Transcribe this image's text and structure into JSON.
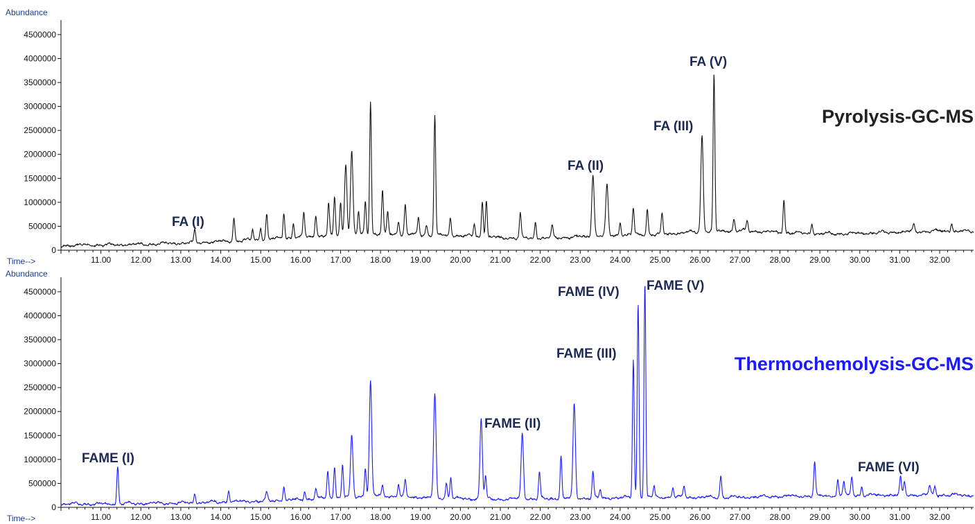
{
  "colors": {
    "pyrolysis_trace": "#111111",
    "thermo_trace": "#1a1aff",
    "thermo_title": "#1a1aff",
    "pyrolysis_title": "#222222",
    "axis_label": "#1a3d8f",
    "peak_label": "#1b2a55"
  },
  "chart_data": [
    {
      "type": "line",
      "title": "Pyrolysis-GC-MS",
      "ylabel": "Abundance",
      "xlabel": "Time-->",
      "xlim": [
        10.0,
        32.85
      ],
      "ylim": [
        0,
        4600000
      ],
      "y_ticks": [
        "0",
        "500000",
        "1000000",
        "1500000",
        "2000000",
        "2500000",
        "3000000",
        "3500000",
        "4000000",
        "4500000"
      ],
      "x_ticks": [
        "11.00",
        "12.00",
        "13.00",
        "14.00",
        "15.00",
        "16.00",
        "17.00",
        "18.00",
        "19.00",
        "20.00",
        "21.00",
        "22.00",
        "23.00",
        "24.00",
        "25.00",
        "26.00",
        "27.00",
        "28.00",
        "29.00",
        "30.00",
        "31.00",
        "32.00"
      ],
      "baseline": [
        [
          10.0,
          90000
        ],
        [
          11.0,
          100000
        ],
        [
          12.0,
          110000
        ],
        [
          13.0,
          140000
        ],
        [
          14.0,
          170000
        ],
        [
          15.0,
          210000
        ],
        [
          16.0,
          260000
        ],
        [
          17.0,
          310000
        ],
        [
          18.0,
          330000
        ],
        [
          19.0,
          310000
        ],
        [
          20.0,
          290000
        ],
        [
          21.0,
          250000
        ],
        [
          22.0,
          240000
        ],
        [
          23.0,
          270000
        ],
        [
          24.0,
          310000
        ],
        [
          25.0,
          320000
        ],
        [
          26.0,
          380000
        ],
        [
          27.0,
          400000
        ],
        [
          28.0,
          360000
        ],
        [
          29.0,
          330000
        ],
        [
          30.0,
          340000
        ],
        [
          31.0,
          370000
        ],
        [
          32.0,
          390000
        ],
        [
          32.85,
          380000
        ]
      ],
      "peaks": [
        {
          "x": 13.35,
          "y": 390000
        },
        {
          "x": 14.33,
          "y": 680000
        },
        {
          "x": 14.8,
          "y": 420000
        },
        {
          "x": 15.0,
          "y": 450000
        },
        {
          "x": 15.15,
          "y": 760000
        },
        {
          "x": 15.58,
          "y": 780000
        },
        {
          "x": 15.82,
          "y": 560000
        },
        {
          "x": 16.08,
          "y": 780000
        },
        {
          "x": 16.38,
          "y": 740000
        },
        {
          "x": 16.7,
          "y": 960000
        },
        {
          "x": 16.85,
          "y": 1100000
        },
        {
          "x": 17.0,
          "y": 1000000
        },
        {
          "x": 17.13,
          "y": 1780000
        },
        {
          "x": 17.28,
          "y": 2070000
        },
        {
          "x": 17.45,
          "y": 780000
        },
        {
          "x": 17.62,
          "y": 1020000
        },
        {
          "x": 17.75,
          "y": 3100000
        },
        {
          "x": 18.05,
          "y": 1220000
        },
        {
          "x": 18.18,
          "y": 780000
        },
        {
          "x": 18.45,
          "y": 600000
        },
        {
          "x": 18.62,
          "y": 960000
        },
        {
          "x": 18.95,
          "y": 680000
        },
        {
          "x": 19.15,
          "y": 520000
        },
        {
          "x": 19.36,
          "y": 2830000
        },
        {
          "x": 19.75,
          "y": 680000
        },
        {
          "x": 20.35,
          "y": 560000
        },
        {
          "x": 20.55,
          "y": 1020000
        },
        {
          "x": 20.65,
          "y": 1040000
        },
        {
          "x": 21.5,
          "y": 760000
        },
        {
          "x": 21.88,
          "y": 580000
        },
        {
          "x": 22.3,
          "y": 500000
        },
        {
          "x": 23.32,
          "y": 1560000
        },
        {
          "x": 23.67,
          "y": 1340000
        },
        {
          "x": 24.0,
          "y": 560000
        },
        {
          "x": 24.33,
          "y": 860000
        },
        {
          "x": 24.68,
          "y": 860000
        },
        {
          "x": 25.05,
          "y": 740000
        },
        {
          "x": 26.05,
          "y": 2380000
        },
        {
          "x": 26.35,
          "y": 3650000
        },
        {
          "x": 26.85,
          "y": 640000
        },
        {
          "x": 27.18,
          "y": 590000
        },
        {
          "x": 28.1,
          "y": 1040000
        },
        {
          "x": 28.8,
          "y": 550000
        },
        {
          "x": 31.35,
          "y": 530000
        },
        {
          "x": 32.3,
          "y": 560000
        }
      ],
      "annotations": [
        {
          "text": "FA  (I)",
          "x": 13.35,
          "y": 390000
        },
        {
          "text": "FA  (II)",
          "x": 23.32,
          "y": 1560000
        },
        {
          "text": "FA  (III)",
          "x": 26.0,
          "y": 2380000
        },
        {
          "text": "FA  (V)",
          "x": 26.35,
          "y": 3650000
        }
      ]
    },
    {
      "type": "line",
      "title": "Thermochemolysis-GC-MS",
      "ylabel": "Abundance",
      "xlabel": "Time-->",
      "xlim": [
        10.0,
        32.85
      ],
      "ylim": [
        0,
        4600000
      ],
      "y_ticks": [
        "0",
        "500000",
        "1000000",
        "1500000",
        "2000000",
        "2500000",
        "3000000",
        "3500000",
        "4000000",
        "4500000"
      ],
      "x_ticks": [
        "11.00",
        "12.00",
        "13.00",
        "14.00",
        "15.00",
        "16.00",
        "17.00",
        "18.00",
        "19.00",
        "20.00",
        "21.00",
        "22.00",
        "23.00",
        "24.00",
        "25.00",
        "26.00",
        "27.00",
        "28.00",
        "29.00",
        "30.00",
        "31.00",
        "32.00"
      ],
      "baseline": [
        [
          10.0,
          60000
        ],
        [
          11.0,
          60000
        ],
        [
          12.0,
          70000
        ],
        [
          13.0,
          80000
        ],
        [
          14.0,
          100000
        ],
        [
          15.0,
          120000
        ],
        [
          16.0,
          150000
        ],
        [
          17.0,
          200000
        ],
        [
          18.0,
          230000
        ],
        [
          19.0,
          200000
        ],
        [
          20.0,
          170000
        ],
        [
          21.0,
          160000
        ],
        [
          22.0,
          170000
        ],
        [
          23.0,
          180000
        ],
        [
          24.0,
          190000
        ],
        [
          25.0,
          200000
        ],
        [
          26.0,
          200000
        ],
        [
          27.0,
          200000
        ],
        [
          28.0,
          220000
        ],
        [
          29.0,
          230000
        ],
        [
          30.0,
          240000
        ],
        [
          31.0,
          250000
        ],
        [
          32.0,
          250000
        ],
        [
          32.85,
          240000
        ]
      ],
      "peaks": [
        {
          "x": 11.42,
          "y": 840000
        },
        {
          "x": 13.35,
          "y": 270000
        },
        {
          "x": 14.2,
          "y": 350000
        },
        {
          "x": 15.15,
          "y": 300000
        },
        {
          "x": 15.58,
          "y": 420000
        },
        {
          "x": 16.1,
          "y": 330000
        },
        {
          "x": 16.38,
          "y": 400000
        },
        {
          "x": 16.68,
          "y": 750000
        },
        {
          "x": 16.85,
          "y": 840000
        },
        {
          "x": 17.05,
          "y": 880000
        },
        {
          "x": 17.28,
          "y": 1480000
        },
        {
          "x": 17.62,
          "y": 830000
        },
        {
          "x": 17.75,
          "y": 2620000
        },
        {
          "x": 18.05,
          "y": 450000
        },
        {
          "x": 18.45,
          "y": 480000
        },
        {
          "x": 18.62,
          "y": 550000
        },
        {
          "x": 19.36,
          "y": 2340000
        },
        {
          "x": 19.65,
          "y": 500000
        },
        {
          "x": 19.76,
          "y": 640000
        },
        {
          "x": 20.52,
          "y": 1840000
        },
        {
          "x": 20.63,
          "y": 620000
        },
        {
          "x": 21.55,
          "y": 1540000
        },
        {
          "x": 21.98,
          "y": 720000
        },
        {
          "x": 22.52,
          "y": 1080000
        },
        {
          "x": 22.85,
          "y": 2150000
        },
        {
          "x": 23.32,
          "y": 730000
        },
        {
          "x": 23.5,
          "y": 350000
        },
        {
          "x": 24.33,
          "y": 3080000
        },
        {
          "x": 24.45,
          "y": 4250000
        },
        {
          "x": 24.62,
          "y": 4680000
        },
        {
          "x": 24.85,
          "y": 420000
        },
        {
          "x": 25.32,
          "y": 420000
        },
        {
          "x": 25.6,
          "y": 450000
        },
        {
          "x": 26.52,
          "y": 650000
        },
        {
          "x": 28.87,
          "y": 940000
        },
        {
          "x": 29.45,
          "y": 560000
        },
        {
          "x": 29.6,
          "y": 530000
        },
        {
          "x": 29.8,
          "y": 650000
        },
        {
          "x": 30.05,
          "y": 420000
        },
        {
          "x": 31.02,
          "y": 620000
        },
        {
          "x": 31.12,
          "y": 520000
        },
        {
          "x": 31.75,
          "y": 450000
        },
        {
          "x": 31.88,
          "y": 430000
        }
      ],
      "annotations": [
        {
          "text": "FAME  (I)",
          "x": 11.42,
          "y": 840000
        },
        {
          "text": "FAME  (II)",
          "x": 21.55,
          "y": 1540000
        },
        {
          "text": "FAME  (III)",
          "x": 24.33,
          "y": 3080000
        },
        {
          "text": "FAME  (IV)",
          "x": 24.45,
          "y": 4250000
        },
        {
          "text": "FAME  (V)",
          "x": 24.62,
          "y": 4680000
        },
        {
          "text": "FAME  (VI)",
          "x": 31.02,
          "y": 620000
        }
      ]
    }
  ]
}
